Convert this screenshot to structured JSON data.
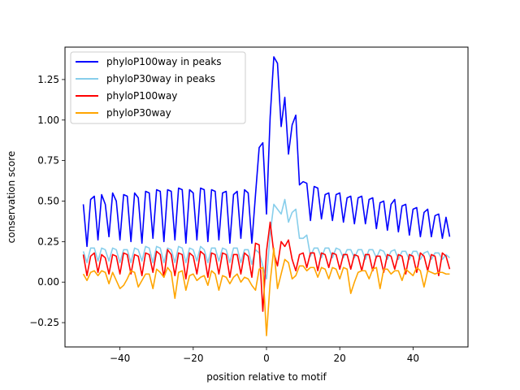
{
  "chart_data": {
    "type": "line",
    "title": "",
    "xlabel": "position relative to motif",
    "ylabel": "conservation score",
    "xlim": [
      -55.0,
      55.0
    ],
    "ylim": [
      -0.4,
      1.45
    ],
    "xticks": [
      -40,
      -20,
      0,
      20,
      40
    ],
    "xtick_labels": [
      "−40",
      "−20",
      "0",
      "20",
      "40"
    ],
    "yticks": [
      -0.25,
      0.0,
      0.25,
      0.5,
      0.75,
      1.0,
      1.25
    ],
    "ytick_labels": [
      "−0.25",
      "0.00",
      "0.25",
      "0.50",
      "0.75",
      "1.00",
      "1.25"
    ],
    "legend_position": "top-left",
    "x": [
      -50,
      -49,
      -48,
      -47,
      -46,
      -45,
      -44,
      -43,
      -42,
      -41,
      -40,
      -39,
      -38,
      -37,
      -36,
      -35,
      -34,
      -33,
      -32,
      -31,
      -30,
      -29,
      -28,
      -27,
      -26,
      -25,
      -24,
      -23,
      -22,
      -21,
      -20,
      -19,
      -18,
      -17,
      -16,
      -15,
      -14,
      -13,
      -12,
      -11,
      -10,
      -9,
      -8,
      -7,
      -6,
      -5,
      -4,
      -3,
      -2,
      -1,
      0,
      1,
      2,
      3,
      4,
      5,
      6,
      7,
      8,
      9,
      10,
      11,
      12,
      13,
      14,
      15,
      16,
      17,
      18,
      19,
      20,
      21,
      22,
      23,
      24,
      25,
      26,
      27,
      28,
      29,
      30,
      31,
      32,
      33,
      34,
      35,
      36,
      37,
      38,
      39,
      40,
      41,
      42,
      43,
      44,
      45,
      46,
      47,
      48,
      49,
      50
    ],
    "series": [
      {
        "name": "phyloP100way in peaks",
        "color": "#0000ff",
        "values": [
          0.48,
          0.22,
          0.51,
          0.53,
          0.26,
          0.54,
          0.48,
          0.28,
          0.55,
          0.5,
          0.26,
          0.54,
          0.53,
          0.25,
          0.55,
          0.52,
          0.24,
          0.56,
          0.55,
          0.27,
          0.57,
          0.56,
          0.25,
          0.57,
          0.56,
          0.26,
          0.58,
          0.57,
          0.24,
          0.57,
          0.55,
          0.26,
          0.58,
          0.57,
          0.25,
          0.57,
          0.56,
          0.26,
          0.55,
          0.56,
          0.24,
          0.54,
          0.56,
          0.27,
          0.57,
          0.55,
          0.24,
          0.54,
          0.83,
          0.86,
          0.42,
          1.02,
          1.39,
          1.35,
          0.96,
          1.14,
          0.79,
          0.97,
          1.03,
          0.6,
          0.62,
          0.61,
          0.38,
          0.59,
          0.58,
          0.39,
          0.54,
          0.55,
          0.38,
          0.54,
          0.55,
          0.37,
          0.52,
          0.53,
          0.36,
          0.52,
          0.53,
          0.36,
          0.51,
          0.52,
          0.33,
          0.49,
          0.5,
          0.32,
          0.48,
          0.51,
          0.31,
          0.47,
          0.48,
          0.29,
          0.45,
          0.46,
          0.28,
          0.43,
          0.45,
          0.28,
          0.41,
          0.42,
          0.27,
          0.4,
          0.28
        ]
      },
      {
        "name": "phyloP30way in peaks",
        "color": "#87ceeb",
        "values": [
          0.19,
          0.12,
          0.21,
          0.21,
          0.13,
          0.21,
          0.2,
          0.13,
          0.21,
          0.2,
          0.12,
          0.2,
          0.2,
          0.12,
          0.21,
          0.2,
          0.13,
          0.22,
          0.21,
          0.12,
          0.22,
          0.21,
          0.12,
          0.21,
          0.2,
          0.12,
          0.22,
          0.21,
          0.12,
          0.21,
          0.2,
          0.13,
          0.22,
          0.2,
          0.12,
          0.21,
          0.21,
          0.13,
          0.21,
          0.2,
          0.12,
          0.21,
          0.21,
          0.12,
          0.2,
          0.2,
          0.11,
          0.2,
          0.18,
          0.1,
          0.02,
          0.3,
          0.48,
          0.45,
          0.42,
          0.51,
          0.37,
          0.43,
          0.45,
          0.27,
          0.27,
          0.29,
          0.16,
          0.21,
          0.21,
          0.15,
          0.21,
          0.21,
          0.15,
          0.21,
          0.2,
          0.15,
          0.2,
          0.2,
          0.15,
          0.2,
          0.2,
          0.14,
          0.2,
          0.2,
          0.15,
          0.2,
          0.19,
          0.14,
          0.19,
          0.2,
          0.14,
          0.19,
          0.19,
          0.14,
          0.19,
          0.19,
          0.14,
          0.18,
          0.19,
          0.14,
          0.18,
          0.18,
          0.14,
          0.17,
          0.15
        ]
      },
      {
        "name": "phyloP100way",
        "color": "#ff0000",
        "values": [
          0.17,
          0.04,
          0.16,
          0.18,
          0.06,
          0.17,
          0.15,
          0.05,
          0.17,
          0.16,
          0.05,
          0.18,
          0.17,
          0.05,
          0.17,
          0.16,
          0.04,
          0.18,
          0.17,
          0.06,
          0.19,
          0.17,
          0.03,
          0.2,
          0.17,
          0.04,
          0.18,
          0.17,
          0.02,
          0.18,
          0.16,
          0.05,
          0.19,
          0.17,
          0.03,
          0.18,
          0.17,
          0.05,
          0.18,
          0.17,
          0.03,
          0.17,
          0.17,
          0.05,
          0.18,
          0.16,
          0.03,
          0.24,
          0.23,
          -0.18,
          0.19,
          0.37,
          0.18,
          0.1,
          0.25,
          0.22,
          0.26,
          0.14,
          0.07,
          0.17,
          0.18,
          0.09,
          0.18,
          0.18,
          0.07,
          0.18,
          0.17,
          0.09,
          0.18,
          0.17,
          0.08,
          0.17,
          0.17,
          0.08,
          0.17,
          0.16,
          0.07,
          0.17,
          0.17,
          0.07,
          0.16,
          0.16,
          0.06,
          0.17,
          0.16,
          0.08,
          0.17,
          0.16,
          0.05,
          0.17,
          0.16,
          0.06,
          0.18,
          0.16,
          0.07,
          0.17,
          0.16,
          0.04,
          0.18,
          0.16,
          0.08
        ]
      },
      {
        "name": "phyloP30way",
        "color": "#ffa500",
        "values": [
          0.05,
          0.01,
          0.06,
          0.07,
          0.04,
          0.07,
          0.06,
          -0.01,
          0.06,
          0.01,
          -0.04,
          -0.02,
          0.02,
          0.07,
          0.06,
          -0.03,
          0.01,
          0.05,
          0.05,
          -0.04,
          0.08,
          0.06,
          0.03,
          0.09,
          0.06,
          -0.1,
          0.06,
          0.07,
          -0.05,
          0.04,
          0.05,
          0.01,
          0.03,
          0.04,
          -0.02,
          0.07,
          0.05,
          -0.05,
          0.04,
          0.03,
          -0.01,
          0.03,
          0.05,
          0.0,
          0.03,
          0.02,
          -0.02,
          -0.05,
          0.08,
          0.09,
          -0.33,
          0.0,
          0.21,
          -0.04,
          0.05,
          0.14,
          0.12,
          0.02,
          0.04,
          0.1,
          0.1,
          0.07,
          0.09,
          0.09,
          0.03,
          0.09,
          0.08,
          0.02,
          0.09,
          0.08,
          0.02,
          0.09,
          0.08,
          -0.07,
          0.0,
          0.06,
          0.07,
          0.07,
          0.02,
          0.08,
          0.09,
          -0.04,
          0.08,
          0.08,
          0.05,
          0.07,
          0.07,
          0.01,
          0.08,
          0.06,
          0.04,
          0.09,
          0.07,
          -0.03,
          0.07,
          0.06,
          0.05,
          0.06,
          0.06,
          0.05,
          0.05
        ]
      }
    ]
  }
}
